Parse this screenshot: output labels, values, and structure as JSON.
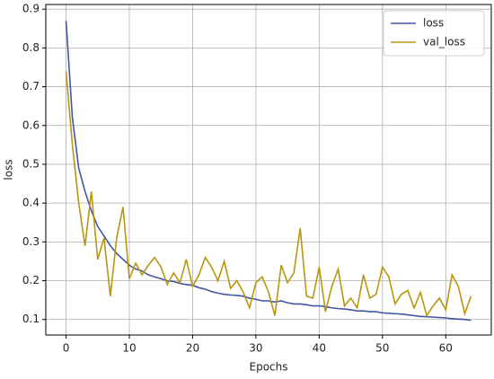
{
  "chart_data": {
    "type": "line",
    "x": [
      0,
      1,
      2,
      3,
      4,
      5,
      6,
      7,
      8,
      9,
      10,
      11,
      12,
      13,
      14,
      15,
      16,
      17,
      18,
      19,
      20,
      21,
      22,
      23,
      24,
      25,
      26,
      27,
      28,
      29,
      30,
      31,
      32,
      33,
      34,
      35,
      36,
      37,
      38,
      39,
      40,
      41,
      42,
      43,
      44,
      45,
      46,
      47,
      48,
      49,
      50,
      51,
      52,
      53,
      54,
      55,
      56,
      57,
      58,
      59,
      60,
      61,
      62,
      63,
      64
    ],
    "series": [
      {
        "name": "loss",
        "color": "#4157a6",
        "values": [
          0.87,
          0.62,
          0.49,
          0.43,
          0.38,
          0.34,
          0.315,
          0.29,
          0.27,
          0.255,
          0.24,
          0.23,
          0.225,
          0.215,
          0.21,
          0.205,
          0.2,
          0.198,
          0.193,
          0.19,
          0.188,
          0.182,
          0.178,
          0.172,
          0.168,
          0.165,
          0.163,
          0.162,
          0.16,
          0.155,
          0.152,
          0.148,
          0.148,
          0.145,
          0.148,
          0.143,
          0.14,
          0.14,
          0.138,
          0.135,
          0.135,
          0.133,
          0.13,
          0.128,
          0.127,
          0.125,
          0.122,
          0.122,
          0.12,
          0.12,
          0.117,
          0.116,
          0.115,
          0.114,
          0.112,
          0.11,
          0.108,
          0.107,
          0.106,
          0.105,
          0.104,
          0.102,
          0.101,
          0.1,
          0.098
        ]
      },
      {
        "name": "val_loss",
        "color": "#b8960f",
        "values": [
          0.74,
          0.55,
          0.4,
          0.29,
          0.43,
          0.255,
          0.31,
          0.16,
          0.31,
          0.39,
          0.205,
          0.245,
          0.215,
          0.24,
          0.26,
          0.235,
          0.19,
          0.22,
          0.195,
          0.255,
          0.185,
          0.215,
          0.26,
          0.235,
          0.2,
          0.25,
          0.18,
          0.2,
          0.17,
          0.13,
          0.195,
          0.21,
          0.17,
          0.11,
          0.24,
          0.195,
          0.22,
          0.335,
          0.16,
          0.155,
          0.235,
          0.12,
          0.185,
          0.23,
          0.135,
          0.155,
          0.13,
          0.215,
          0.155,
          0.165,
          0.235,
          0.21,
          0.14,
          0.165,
          0.175,
          0.13,
          0.17,
          0.11,
          0.135,
          0.155,
          0.125,
          0.215,
          0.185,
          0.115,
          0.16
        ]
      }
    ],
    "xlabel": "Epochs",
    "ylabel": "loss",
    "xlim": [
      -3.2,
      67.2
    ],
    "ylim": [
      0.06,
      0.912
    ],
    "xticks": [
      0,
      10,
      20,
      30,
      40,
      50,
      60
    ],
    "yticks": [
      0.1,
      0.2,
      0.3,
      0.4,
      0.5,
      0.6,
      0.7,
      0.8,
      0.9
    ],
    "grid": true,
    "legend": "upper right"
  }
}
